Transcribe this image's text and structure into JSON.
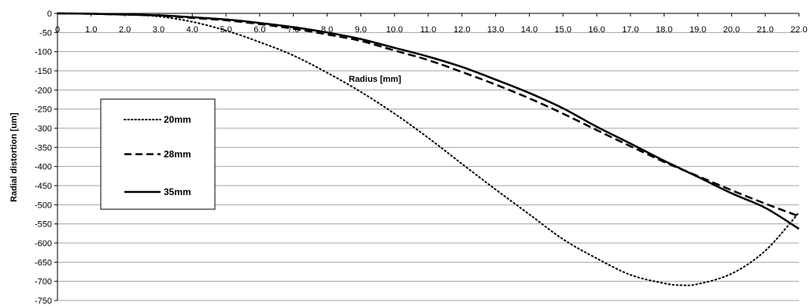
{
  "chart_data": {
    "type": "line",
    "title": "",
    "xlabel": "Radius [mm]",
    "ylabel": "Radial distortion  [um]",
    "xlim": [
      0,
      22
    ],
    "ylim": [
      -750,
      0
    ],
    "x_ticks": [
      "0",
      "1.0",
      "2.0",
      "3.0",
      "4.0",
      "5.0",
      "6.0",
      "7.0",
      "8.0",
      "9.0",
      "10.0",
      "11.0",
      "12.0",
      "13.0",
      "14.0",
      "15.0",
      "16.0",
      "17.0",
      "18.0",
      "19.0",
      "20.0",
      "21.0",
      "22.0"
    ],
    "y_ticks": [
      "0",
      "-50",
      "-100",
      "-150",
      "-200",
      "-250",
      "-300",
      "-350",
      "-400",
      "-450",
      "-500",
      "-550",
      "-600",
      "-650",
      "-700",
      "-750"
    ],
    "grid": "horizontal",
    "legend_position": "left",
    "series": [
      {
        "name": "20mm",
        "style": "dotted",
        "color": "#000000",
        "x": [
          0,
          1,
          2,
          3,
          4,
          5,
          6,
          7,
          8,
          9,
          10,
          11,
          12,
          13,
          14,
          15,
          16,
          17,
          18,
          18.5,
          19,
          20,
          21,
          22
        ],
        "y": [
          0,
          -1,
          -3,
          -8,
          -22,
          -45,
          -75,
          -110,
          -155,
          -205,
          -262,
          -325,
          -393,
          -460,
          -525,
          -590,
          -640,
          -683,
          -705,
          -710,
          -707,
          -680,
          -620,
          -520
        ]
      },
      {
        "name": "28mm",
        "style": "dashed",
        "color": "#000000",
        "x": [
          0,
          1,
          2,
          3,
          4,
          5,
          6,
          7,
          8,
          9,
          10,
          11,
          12,
          13,
          14,
          15,
          16,
          17,
          18,
          19,
          20,
          21,
          22
        ],
        "y": [
          0,
          -1,
          -3,
          -6,
          -12,
          -18,
          -28,
          -40,
          -55,
          -72,
          -97,
          -122,
          -153,
          -186,
          -222,
          -262,
          -305,
          -347,
          -388,
          -425,
          -462,
          -497,
          -530
        ]
      },
      {
        "name": "35mm",
        "style": "solid",
        "color": "#000000",
        "x": [
          0,
          1,
          2,
          3,
          4,
          5,
          6,
          7,
          8,
          9,
          10,
          11,
          12,
          13,
          14,
          15,
          16,
          17,
          18,
          19,
          20,
          21,
          22
        ],
        "y": [
          0,
          -1,
          -3,
          -5,
          -10,
          -16,
          -25,
          -36,
          -50,
          -67,
          -90,
          -113,
          -140,
          -173,
          -208,
          -248,
          -296,
          -340,
          -385,
          -427,
          -470,
          -508,
          -563
        ]
      }
    ]
  }
}
